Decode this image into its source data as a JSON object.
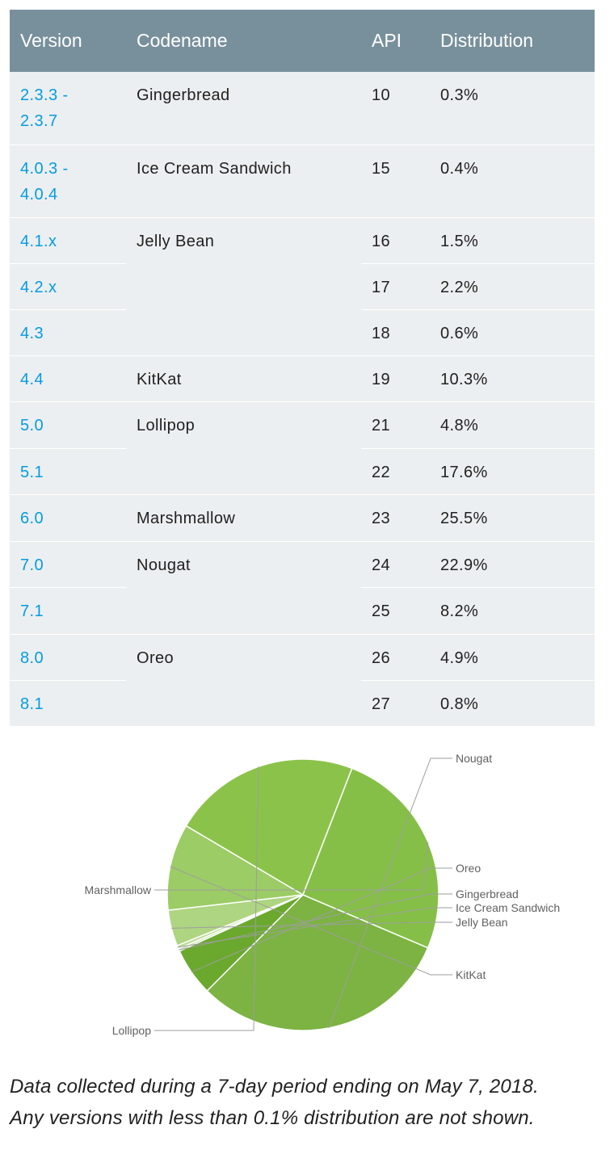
{
  "table": {
    "headers": {
      "version": "Version",
      "codename": "Codename",
      "api": "API",
      "distribution": "Distribution"
    }
  },
  "chart_data": {
    "type": "table",
    "columns": [
      "Version",
      "Codename",
      "API",
      "Distribution"
    ],
    "rows": [
      [
        "2.3.3 - 2.3.7",
        "Gingerbread",
        "10",
        "0.3%"
      ],
      [
        "4.0.3 - 4.0.4",
        "Ice Cream Sandwich",
        "15",
        "0.4%"
      ],
      [
        "4.1.x",
        "Jelly Bean",
        "16",
        "1.5%"
      ],
      [
        "4.2.x",
        "",
        "17",
        "2.2%"
      ],
      [
        "4.3",
        "",
        "18",
        "0.6%"
      ],
      [
        "4.4",
        "KitKat",
        "19",
        "10.3%"
      ],
      [
        "5.0",
        "Lollipop",
        "21",
        "4.8%"
      ],
      [
        "5.1",
        "",
        "22",
        "17.6%"
      ],
      [
        "6.0",
        "Marshmallow",
        "23",
        "25.5%"
      ],
      [
        "7.0",
        "Nougat",
        "24",
        "22.9%"
      ],
      [
        "7.1",
        "",
        "25",
        "8.2%"
      ],
      [
        "8.0",
        "Oreo",
        "26",
        "4.9%"
      ],
      [
        "8.1",
        "",
        "27",
        "0.8%"
      ]
    ],
    "pie": {
      "type": "pie",
      "slices": [
        {
          "label": "Nougat",
          "value": 31.1,
          "color": "#7cb342"
        },
        {
          "label": "Oreo",
          "value": 5.7,
          "color": "#6aa92e"
        },
        {
          "label": "Gingerbread",
          "value": 0.3,
          "color": "#c5e1a5"
        },
        {
          "label": "Ice Cream Sandwich",
          "value": 0.4,
          "color": "#bcdc94"
        },
        {
          "label": "Jelly Bean",
          "value": 4.3,
          "color": "#aed581"
        },
        {
          "label": "KitKat",
          "value": 10.3,
          "color": "#9ccc65"
        },
        {
          "label": "Lollipop",
          "value": 22.4,
          "color": "#8bc34a"
        },
        {
          "label": "Marshmallow",
          "value": 25.5,
          "color": "#86bf48"
        }
      ]
    }
  },
  "footnote": {
    "line1": "Data collected during a 7-day period ending on May 7, 2018.",
    "line2": "Any versions with less than 0.1% distribution are not shown."
  }
}
